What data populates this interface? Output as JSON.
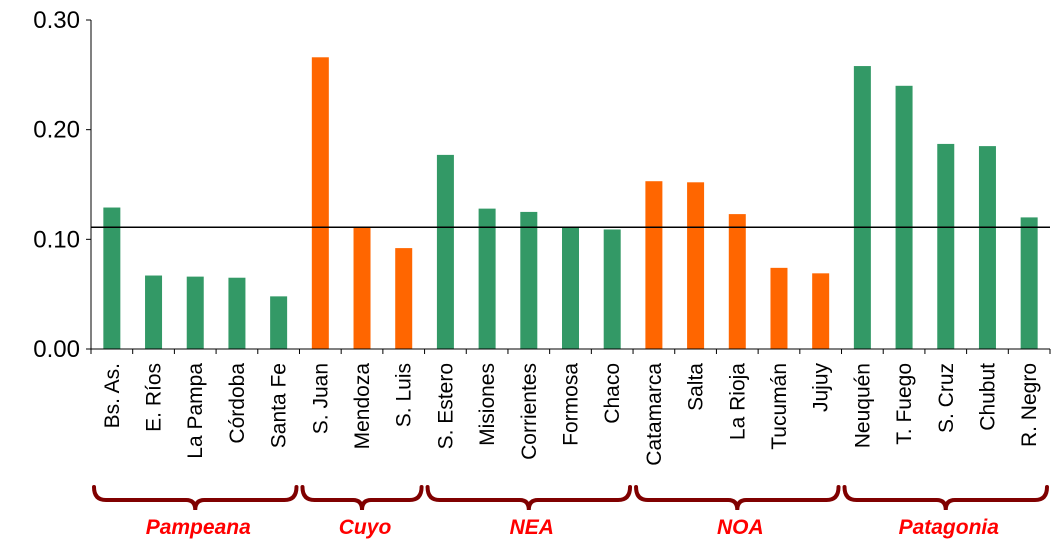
{
  "chart_data": {
    "type": "bar",
    "title": "",
    "xlabel": "",
    "ylabel": "",
    "ylim": [
      0,
      0.3
    ],
    "yticks": [
      "0.00",
      "0.10",
      "0.20",
      "0.30"
    ],
    "reference_line": 0.111,
    "colors": {
      "green": "#339966",
      "orange": "#ff6600",
      "brace": "#800000",
      "region_label": "#ff0000"
    },
    "categories": [
      "Bs. As.",
      "E. Ríos",
      "La Pampa",
      "Córdoba",
      "Santa Fe",
      "S. Juan",
      "Mendoza",
      "S. Luis",
      "S. Estero",
      "Misiones",
      "Corrientes",
      "Formosa",
      "Chaco",
      "Catamarca",
      "Salta",
      "La Rioja",
      "Tucumán",
      "Jujuy",
      "Neuquén",
      "T. Fuego",
      "S. Cruz",
      "Chubut",
      "R. Negro"
    ],
    "values": [
      0.129,
      0.067,
      0.066,
      0.065,
      0.048,
      0.266,
      0.111,
      0.092,
      0.177,
      0.128,
      0.125,
      0.111,
      0.109,
      0.153,
      0.152,
      0.123,
      0.074,
      0.069,
      0.258,
      0.24,
      0.187,
      0.185,
      0.12
    ],
    "bar_colors": [
      "green",
      "green",
      "green",
      "green",
      "green",
      "orange",
      "orange",
      "orange",
      "green",
      "green",
      "green",
      "green",
      "green",
      "orange",
      "orange",
      "orange",
      "orange",
      "orange",
      "green",
      "green",
      "green",
      "green",
      "green"
    ],
    "groups": [
      {
        "name": "Pampeana",
        "start": 0,
        "end": 4
      },
      {
        "name": "Cuyo",
        "start": 5,
        "end": 7
      },
      {
        "name": "NEA",
        "start": 8,
        "end": 12
      },
      {
        "name": "NOA",
        "start": 13,
        "end": 17
      },
      {
        "name": "Patagonia",
        "start": 18,
        "end": 22
      }
    ]
  }
}
